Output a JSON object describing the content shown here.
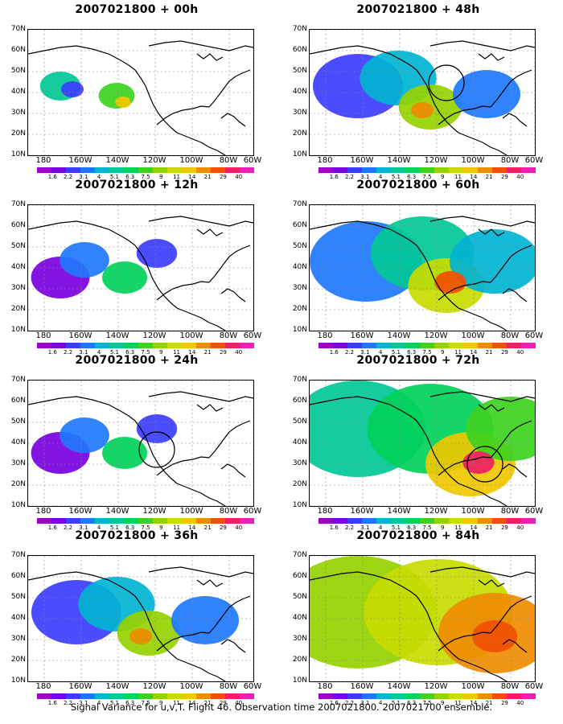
{
  "caption": "Signal Variance for u,v,T. Flight 46. Observation time 2007021800. 2007021700 ensemble.",
  "lat_labels": [
    "70N",
    "60N",
    "50N",
    "40N",
    "30N",
    "20N",
    "10N"
  ],
  "lon_labels": [
    "180",
    "160W",
    "140W",
    "120W",
    "100W",
    "80W",
    "60W"
  ],
  "colorbar": {
    "colors": [
      "#a000c8",
      "#7a00e0",
      "#3c3cff",
      "#1e78ff",
      "#00b4d2",
      "#00c896",
      "#00d25a",
      "#3cd21e",
      "#96d200",
      "#c8dc00",
      "#f0c800",
      "#f08c00",
      "#f05000",
      "#f01e64",
      "#f01eb4"
    ],
    "labels": [
      "1.6",
      "2.2",
      "3.1",
      "4",
      "5.1",
      "6.3",
      "7.5",
      "9",
      "11",
      "14",
      "21",
      "29",
      "40"
    ]
  },
  "panels": [
    {
      "title": "2007021800 + 00h",
      "level": 0
    },
    {
      "title": "2007021800 + 48h",
      "level": 2
    },
    {
      "title": "2007021800 + 12h",
      "level": 1
    },
    {
      "title": "2007021800 + 60h",
      "level": 3
    },
    {
      "title": "2007021800 + 24h",
      "level": 1
    },
    {
      "title": "2007021800 + 72h",
      "level": 4
    },
    {
      "title": "2007021800 + 36h",
      "level": 2
    },
    {
      "title": "2007021800 + 84h",
      "level": 5
    }
  ]
}
